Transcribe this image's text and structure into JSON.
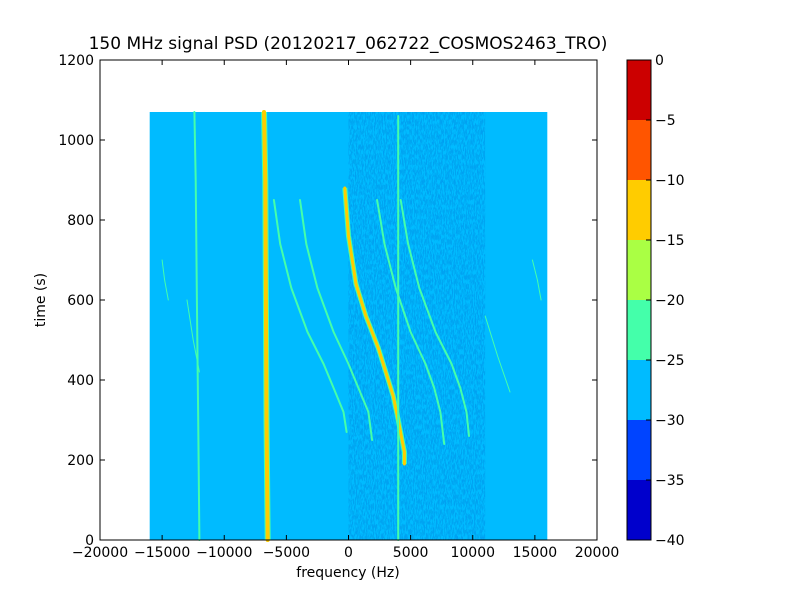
{
  "chart_data": {
    "type": "heatmap",
    "title": "150 MHz signal PSD (20120217_062722_COSMOS2463_TRO)",
    "xlabel": "frequency (Hz)",
    "ylabel": "time (s)",
    "xlim": [
      -20000,
      20000
    ],
    "ylim": [
      0,
      1200
    ],
    "xticks": [
      -20000,
      -15000,
      -10000,
      -5000,
      0,
      5000,
      10000,
      15000,
      20000
    ],
    "xtick_labels": [
      "−20000",
      "−15000",
      "−10000",
      "−5000",
      "0",
      "5000",
      "10000",
      "15000",
      "20000"
    ],
    "yticks": [
      0,
      200,
      400,
      600,
      800,
      1000,
      1200
    ],
    "ytick_labels": [
      "0",
      "200",
      "400",
      "600",
      "800",
      "1000",
      "1200"
    ],
    "grid": false,
    "data_extent": {
      "x": [
        -16000,
        16000
      ],
      "y": [
        0,
        1070
      ]
    },
    "noisy_region_x": [
      0,
      11000
    ],
    "background_level": -27.5,
    "colorbar": {
      "vmin": -40,
      "vmax": 0,
      "ticks": [
        0,
        -5,
        -10,
        -15,
        -20,
        -25,
        -30,
        -35,
        -40
      ],
      "tick_labels": [
        "0",
        "−5",
        "−10",
        "−15",
        "−20",
        "−25",
        "−30",
        "−35",
        "−40"
      ],
      "levels": [
        {
          "from": -40,
          "to": -35,
          "color": "#0000cc"
        },
        {
          "from": -35,
          "to": -30,
          "color": "#0044ff"
        },
        {
          "from": -30,
          "to": -25,
          "color": "#00bbff"
        },
        {
          "from": -25,
          "to": -20,
          "color": "#44ffaa"
        },
        {
          "from": -20,
          "to": -15,
          "color": "#aaff44"
        },
        {
          "from": -15,
          "to": -10,
          "color": "#ffcc00"
        },
        {
          "from": -10,
          "to": -5,
          "color": "#ff5500"
        },
        {
          "from": -5,
          "to": 0,
          "color": "#cc0000"
        }
      ]
    },
    "series": [
      {
        "level": -12,
        "width": 4,
        "points": [
          [
            -6500,
            0
          ],
          [
            -6600,
            300
          ],
          [
            -6650,
            600
          ],
          [
            -6700,
            900
          ],
          [
            -6800,
            1070
          ]
        ]
      },
      {
        "level": -22,
        "width": 2,
        "points": [
          [
            -12000,
            0
          ],
          [
            -12100,
            300
          ],
          [
            -12200,
            600
          ],
          [
            -12300,
            900
          ],
          [
            -12400,
            1070
          ]
        ]
      },
      {
        "level": -12,
        "width": 3,
        "points": [
          [
            -300,
            880
          ],
          [
            0,
            760
          ],
          [
            600,
            640
          ],
          [
            1400,
            560
          ],
          [
            2400,
            480
          ],
          [
            3000,
            420
          ],
          [
            3600,
            360
          ],
          [
            4000,
            300
          ],
          [
            4500,
            220
          ],
          [
            4500,
            190
          ]
        ]
      },
      {
        "level": -22,
        "width": 2,
        "points": [
          [
            4000,
            0
          ],
          [
            4000,
            400
          ],
          [
            4000,
            800
          ],
          [
            4000,
            1060
          ]
        ]
      },
      {
        "level": -22,
        "width": 2,
        "points": [
          [
            -6000,
            850
          ],
          [
            -5500,
            740
          ],
          [
            -4600,
            630
          ],
          [
            -3300,
            520
          ],
          [
            -2000,
            440
          ],
          [
            -1200,
            380
          ],
          [
            -400,
            320
          ],
          [
            -150,
            270
          ]
        ]
      },
      {
        "level": -22,
        "width": 2,
        "points": [
          [
            -3900,
            850
          ],
          [
            -3400,
            740
          ],
          [
            -2500,
            630
          ],
          [
            -1200,
            520
          ],
          [
            0,
            440
          ],
          [
            800,
            380
          ],
          [
            1600,
            320
          ],
          [
            1900,
            250
          ]
        ]
      },
      {
        "level": -22,
        "width": 2,
        "points": [
          [
            2300,
            850
          ],
          [
            2900,
            740
          ],
          [
            3800,
            630
          ],
          [
            5000,
            520
          ],
          [
            6200,
            440
          ],
          [
            6900,
            380
          ],
          [
            7400,
            320
          ],
          [
            7700,
            240
          ]
        ]
      },
      {
        "level": -22,
        "width": 2,
        "points": [
          [
            4200,
            850
          ],
          [
            4800,
            740
          ],
          [
            5700,
            630
          ],
          [
            7000,
            520
          ],
          [
            8300,
            440
          ],
          [
            9000,
            380
          ],
          [
            9500,
            320
          ],
          [
            9700,
            260
          ]
        ]
      },
      {
        "level": -23,
        "width": 1,
        "points": [
          [
            -15000,
            700
          ],
          [
            -14800,
            650
          ],
          [
            -14500,
            600
          ]
        ]
      },
      {
        "level": -23,
        "width": 1,
        "points": [
          [
            -13000,
            600
          ],
          [
            -12500,
            500
          ],
          [
            -12000,
            420
          ]
        ]
      },
      {
        "level": -23,
        "width": 1,
        "points": [
          [
            11000,
            560
          ],
          [
            12000,
            460
          ],
          [
            13000,
            370
          ]
        ]
      },
      {
        "level": -23,
        "width": 1,
        "points": [
          [
            14800,
            700
          ],
          [
            15200,
            650
          ],
          [
            15500,
            600
          ]
        ]
      }
    ]
  }
}
